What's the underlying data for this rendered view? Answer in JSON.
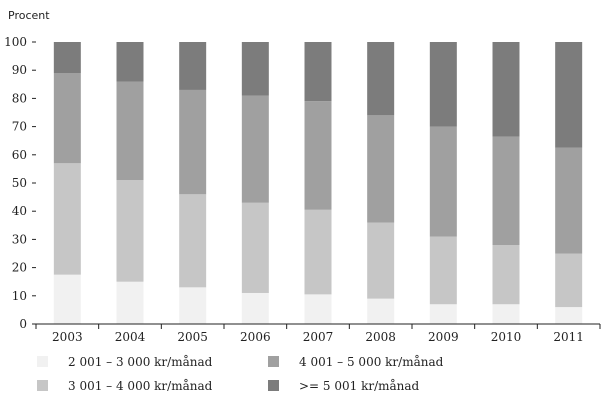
{
  "chart_data": {
    "type": "bar",
    "stacked": true,
    "title": "",
    "xlabel": "",
    "ylabel": "Procent",
    "ylim": [
      0,
      100
    ],
    "yticks": [
      0,
      10,
      20,
      30,
      40,
      50,
      60,
      70,
      80,
      90,
      100
    ],
    "grid": false,
    "legend_position": "bottom",
    "categories": [
      "2003",
      "2004",
      "2005",
      "2006",
      "2007",
      "2008",
      "2009",
      "2010",
      "2011"
    ],
    "series": [
      {
        "name": "2 001 – 3 000 kr/månad",
        "color": "#f1f1f1",
        "values": [
          17.5,
          15,
          13,
          11,
          10.5,
          9,
          7,
          7,
          6
        ]
      },
      {
        "name": "3 001 – 4 000 kr/månad",
        "color": "#c6c6c6",
        "values": [
          39.5,
          36,
          33,
          32,
          30,
          27,
          24,
          21,
          19
        ]
      },
      {
        "name": "4 001 – 5 000 kr/månad",
        "color": "#a0a0a0",
        "values": [
          32,
          35,
          37,
          38,
          38.5,
          38,
          39,
          38.5,
          37.5
        ]
      },
      {
        "name": ">= 5 001 kr/månad",
        "color": "#7c7c7c",
        "values": [
          11,
          14,
          17,
          19,
          21,
          26,
          30,
          33.5,
          37.5
        ]
      }
    ]
  }
}
